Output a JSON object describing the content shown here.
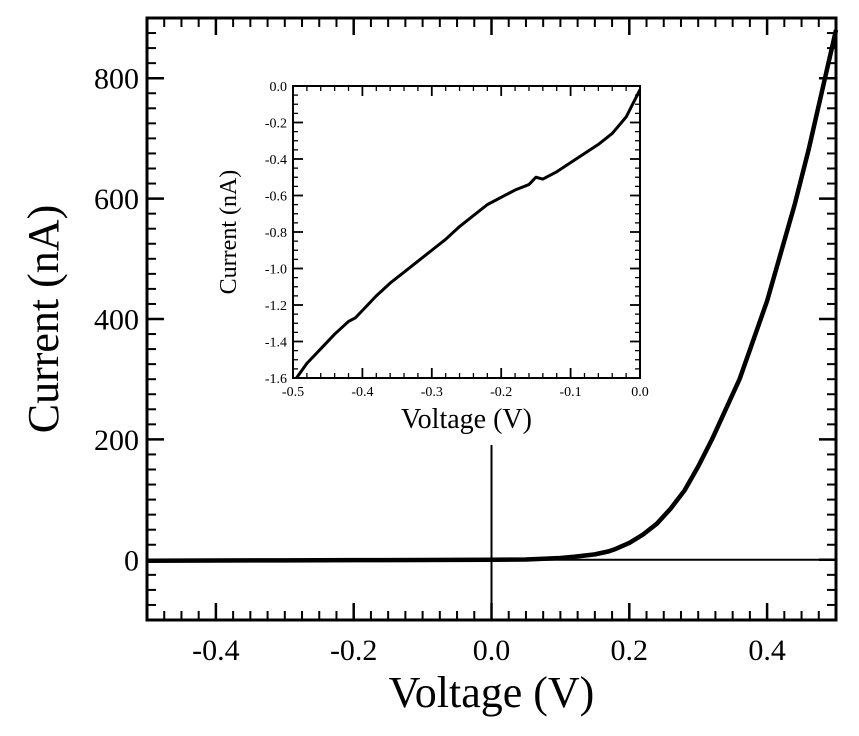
{
  "chart_data": [
    {
      "type": "line",
      "xlabel": "Voltage (V)",
      "ylabel": "Current (nA)",
      "xlim": [
        -0.5,
        0.5
      ],
      "ylim": [
        -100,
        900
      ],
      "xticks": [
        -0.4,
        -0.2,
        0.0,
        0.2,
        0.4
      ],
      "xtick_labels": [
        "-0.4",
        "-0.2",
        "0.0",
        "0.2",
        "0.4"
      ],
      "yticks": [
        0,
        200,
        400,
        600,
        800
      ],
      "ytick_labels": [
        "0",
        "200",
        "400",
        "600",
        "800"
      ],
      "grid": false,
      "series": [
        {
          "x": [
            -0.5,
            -0.4,
            -0.3,
            -0.2,
            -0.1,
            0.0,
            0.05,
            0.08,
            0.1,
            0.12,
            0.15,
            0.17,
            0.18,
            0.2,
            0.22,
            0.24,
            0.26,
            0.28,
            0.3,
            0.32,
            0.34,
            0.36,
            0.38,
            0.4,
            0.42,
            0.44,
            0.46,
            0.48,
            0.49,
            0.5
          ],
          "y": [
            -1.6,
            -1.2,
            -0.9,
            -0.55,
            -0.3,
            0,
            0.5,
            2,
            3,
            5,
            9,
            14,
            18,
            28,
            42,
            60,
            85,
            115,
            155,
            200,
            250,
            300,
            365,
            430,
            510,
            590,
            680,
            780,
            830,
            880
          ]
        }
      ]
    },
    {
      "type": "line",
      "xlabel": "Voltage (V)",
      "ylabel": "Current (nA)",
      "xlim": [
        -0.5,
        0.0
      ],
      "ylim": [
        -1.6,
        0.0
      ],
      "xticks": [
        -0.5,
        -0.4,
        -0.3,
        -0.2,
        -0.1,
        0.0
      ],
      "xtick_labels": [
        "-0.5",
        "-0.4",
        "-0.3",
        "-0.2",
        "-0.1",
        "0.0"
      ],
      "yticks": [
        0.0,
        -0.2,
        -0.4,
        -0.6,
        -0.8,
        -1.0,
        -1.2,
        -1.4,
        -1.6
      ],
      "ytick_labels": [
        "0.0",
        "-0.2",
        "-0.4",
        "-0.6",
        "-0.8",
        "-1.0",
        "-1.2",
        "-1.4",
        "-1.6"
      ],
      "grid": false,
      "series": [
        {
          "x": [
            -0.495,
            -0.48,
            -0.46,
            -0.44,
            -0.42,
            -0.41,
            -0.4,
            -0.38,
            -0.36,
            -0.34,
            -0.32,
            -0.3,
            -0.28,
            -0.26,
            -0.24,
            -0.22,
            -0.2,
            -0.18,
            -0.16,
            -0.15,
            -0.14,
            -0.12,
            -0.1,
            -0.08,
            -0.06,
            -0.04,
            -0.02,
            0.0
          ],
          "y": [
            -1.6,
            -1.52,
            -1.44,
            -1.36,
            -1.29,
            -1.27,
            -1.23,
            -1.15,
            -1.08,
            -1.02,
            -0.96,
            -0.9,
            -0.84,
            -0.77,
            -0.71,
            -0.65,
            -0.61,
            -0.57,
            -0.54,
            -0.5,
            -0.51,
            -0.47,
            -0.42,
            -0.37,
            -0.32,
            -0.26,
            -0.17,
            -0.02
          ]
        }
      ]
    }
  ]
}
